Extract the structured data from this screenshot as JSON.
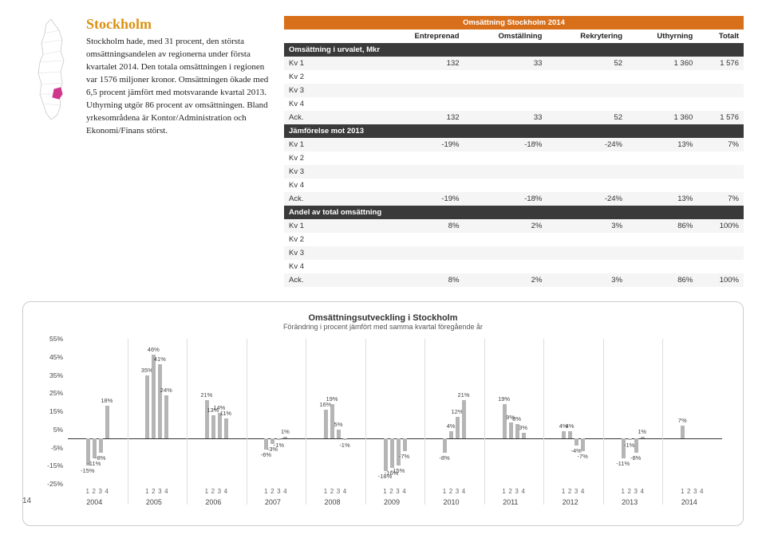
{
  "heading": "Stockholm",
  "body": "Stockholm hade, med 31 procent, den största omsättningsandelen av regionerna under första kvartalet 2014. Den totala omsättningen i regionen var 1576 miljoner kronor. Omsättningen ökade med 6,5 procent jämfört med motsvarande kvartal 2013. Uthyrning utgör 86 procent av omsättningen. Bland yrkesområdena är Kontor/Administration och Ekonomi/Finans störst.",
  "table_title": "Omsättning Stockholm 2014",
  "cols": [
    "Entreprenad",
    "Omställning",
    "Rekrytering",
    "Uthyrning",
    "Totalt"
  ],
  "sections": [
    {
      "head": "Omsättning i urvalet, Mkr",
      "rows": [
        {
          "l": "Kv 1",
          "c": [
            "132",
            "33",
            "52",
            "1 360",
            "1 576"
          ]
        },
        {
          "l": "Kv 2",
          "c": [
            "",
            "",
            "",
            "",
            ""
          ]
        },
        {
          "l": "Kv 3",
          "c": [
            "",
            "",
            "",
            "",
            ""
          ]
        },
        {
          "l": "Kv 4",
          "c": [
            "",
            "",
            "",
            "",
            ""
          ]
        },
        {
          "l": "Ack.",
          "c": [
            "132",
            "33",
            "52",
            "1 360",
            "1 576"
          ]
        }
      ]
    },
    {
      "head": "Jämförelse mot 2013",
      "rows": [
        {
          "l": "Kv 1",
          "c": [
            "-19%",
            "-18%",
            "-24%",
            "13%",
            "7%"
          ]
        },
        {
          "l": "Kv 2",
          "c": [
            "",
            "",
            "",
            "",
            ""
          ]
        },
        {
          "l": "Kv 3",
          "c": [
            "",
            "",
            "",
            "",
            ""
          ]
        },
        {
          "l": "Kv 4",
          "c": [
            "",
            "",
            "",
            "",
            ""
          ]
        },
        {
          "l": "Ack.",
          "c": [
            "-19%",
            "-18%",
            "-24%",
            "13%",
            "7%"
          ]
        }
      ]
    },
    {
      "head": "Andel av total omsättning",
      "rows": [
        {
          "l": "Kv 1",
          "c": [
            "8%",
            "2%",
            "3%",
            "86%",
            "100%"
          ]
        },
        {
          "l": "Kv 2",
          "c": [
            "",
            "",
            "",
            "",
            ""
          ]
        },
        {
          "l": "Kv 3",
          "c": [
            "",
            "",
            "",
            "",
            ""
          ]
        },
        {
          "l": "Kv 4",
          "c": [
            "",
            "",
            "",
            "",
            ""
          ]
        },
        {
          "l": "Ack.",
          "c": [
            "8%",
            "2%",
            "3%",
            "86%",
            "100%"
          ]
        }
      ]
    }
  ],
  "chart": {
    "title": "Omsättningsutveckling i Stockholm",
    "subtitle": "Förändring i procent jämfört med samma kvartal föregående år",
    "ymin": -25,
    "ymax": 55,
    "ystep": 10,
    "bar_color": "#b5b5b5",
    "years": [
      "2004",
      "2005",
      "2006",
      "2007",
      "2008",
      "2009",
      "2010",
      "2011",
      "2012",
      "2013",
      "2014"
    ],
    "quarters": [
      "1",
      "2",
      "3",
      "4"
    ],
    "values": [
      [
        -15,
        -11,
        -8,
        18
      ],
      [
        35,
        46,
        41,
        24
      ],
      [
        21,
        13,
        14,
        11
      ],
      [
        -6,
        -3,
        -1,
        1
      ],
      [
        16,
        19,
        5,
        -1
      ],
      [
        -18,
        -16,
        -15,
        -7
      ],
      [
        -8,
        4,
        12,
        21
      ],
      [
        19,
        9,
        8,
        3
      ],
      [
        4,
        4,
        -4,
        -7
      ],
      [
        -11,
        -1,
        -8,
        1
      ],
      [
        7,
        null,
        null,
        null
      ]
    ]
  },
  "pagenum": "14"
}
